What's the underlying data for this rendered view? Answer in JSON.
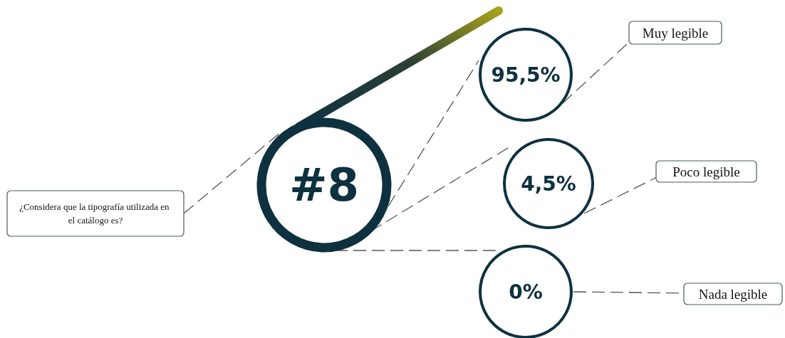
{
  "chart_data": {
    "type": "other",
    "title": "#8",
    "subtitle": "¿Considera que la tipografía utilizada en el catálogo es?",
    "categories": [
      "Muy legible",
      "Poco legible",
      "Nada legible"
    ],
    "values": [
      95.5,
      4.5,
      0
    ],
    "value_labels": [
      "95,5%",
      "4,5%",
      "0%"
    ]
  }
}
